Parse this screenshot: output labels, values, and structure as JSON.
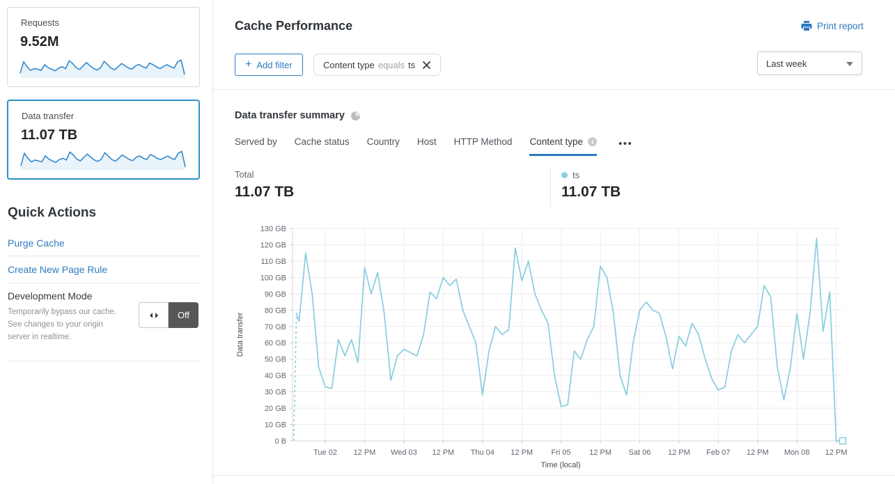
{
  "colors": {
    "accent_blue": "#2f7bbf",
    "chart_line": "#8ccfe0",
    "sparkline_line": "#3588c9",
    "sparkline_fill": "#e9f3fa",
    "selected_card_border": "#2f8ec7",
    "toggle_off_bg": "#565656"
  },
  "sidebar": {
    "cards": [
      {
        "label": "Requests",
        "value": "9.52M",
        "sparkline": [
          18,
          68,
          45,
          30,
          38,
          35,
          30,
          55,
          42,
          35,
          28,
          40,
          46,
          38,
          72,
          60,
          42,
          34,
          50,
          64,
          50,
          38,
          32,
          42,
          70,
          55,
          40,
          33,
          46,
          60,
          50,
          40,
          36,
          50,
          56,
          46,
          40,
          62,
          55,
          45,
          38,
          48,
          55,
          46,
          40,
          68,
          75,
          12
        ]
      },
      {
        "label": "Data transfer",
        "value": "11.07 TB",
        "selected": true,
        "sparkline": [
          15,
          70,
          48,
          32,
          40,
          36,
          32,
          58,
          44,
          36,
          30,
          42,
          48,
          40,
          75,
          62,
          44,
          36,
          52,
          66,
          52,
          40,
          34,
          44,
          72,
          57,
          42,
          35,
          48,
          62,
          52,
          42,
          38,
          52,
          58,
          48,
          42,
          64,
          57,
          47,
          42,
          50,
          57,
          48,
          42,
          70,
          78,
          10
        ]
      }
    ],
    "quick_actions": {
      "title": "Quick Actions",
      "links": [
        "Purge Cache",
        "Create New Page Rule"
      ],
      "dev_mode": {
        "title": "Development Mode",
        "description": "Temporarily bypass our cache. See changes to your origin server in realtime.",
        "toggle_label": "Off"
      }
    }
  },
  "header": {
    "title": "Cache Performance",
    "print_label": "Print report"
  },
  "filters": {
    "add_label": "Add filter",
    "plus": "+",
    "chip": {
      "field": "Content type",
      "operator": "equals",
      "value": "ts"
    },
    "range": "Last week"
  },
  "summary": {
    "title": "Data transfer summary",
    "tabs": [
      {
        "label": "Served by"
      },
      {
        "label": "Cache status"
      },
      {
        "label": "Country"
      },
      {
        "label": "Host"
      },
      {
        "label": "HTTP Method"
      },
      {
        "label": "Content type",
        "active": true,
        "has_info": true
      }
    ],
    "more_label": "•••",
    "stats": [
      {
        "label": "Total",
        "value": "11.07 TB"
      },
      {
        "label": "ts",
        "value": "11.07 TB",
        "dot_color": "#8ccfe0"
      }
    ]
  },
  "chart_data": {
    "type": "line",
    "title": "Data transfer summary — ts",
    "xlabel": "Time (local)",
    "ylabel": "Data transfer",
    "unit": "GB",
    "ylim": [
      0,
      130
    ],
    "grid": true,
    "legend_position": "above-right",
    "y_tick_labels": [
      "0 B",
      "10 GB",
      "20 GB",
      "30 GB",
      "40 GB",
      "50 GB",
      "60 GB",
      "70 GB",
      "80 GB",
      "90 GB",
      "100 GB",
      "110 GB",
      "120 GB",
      "130 GB"
    ],
    "total_hours": 168,
    "x_ticks": [
      {
        "label": "Tue 02",
        "hour": 10
      },
      {
        "label": "12 PM",
        "hour": 22
      },
      {
        "label": "Wed 03",
        "hour": 34
      },
      {
        "label": "12 PM",
        "hour": 46
      },
      {
        "label": "Thu 04",
        "hour": 58
      },
      {
        "label": "12 PM",
        "hour": 70
      },
      {
        "label": "Fri 05",
        "hour": 82
      },
      {
        "label": "12 PM",
        "hour": 94
      },
      {
        "label": "Sat 06",
        "hour": 106
      },
      {
        "label": "12 PM",
        "hour": 118
      },
      {
        "label": "Feb 07",
        "hour": 130
      },
      {
        "label": "12 PM",
        "hour": 142
      },
      {
        "label": "Mon 08",
        "hour": 154
      },
      {
        "label": "12 PM",
        "hour": 166
      }
    ],
    "lead_in_dashed": true,
    "end_marker": true,
    "series": [
      {
        "name": "ts",
        "color": "#8ccfe0",
        "step_hours": 2,
        "values": [
          78,
          73,
          115,
          90,
          45,
          33,
          32,
          62,
          52,
          62,
          48,
          106,
          90,
          103,
          78,
          37,
          52,
          56,
          54,
          52,
          65,
          91,
          87,
          100,
          95,
          99,
          80,
          70,
          60,
          28,
          55,
          70,
          65,
          68,
          118,
          98,
          110,
          90,
          80,
          72,
          40,
          21,
          22,
          55,
          50,
          62,
          70,
          107,
          100,
          78,
          40,
          28,
          60,
          80,
          85,
          80,
          78,
          64,
          44,
          64,
          58,
          72,
          65,
          50,
          38,
          31,
          33,
          55,
          65,
          60,
          65,
          70,
          95,
          88,
          45,
          25,
          45,
          78,
          50,
          78,
          124,
          67,
          91,
          0,
          0
        ]
      }
    ]
  }
}
